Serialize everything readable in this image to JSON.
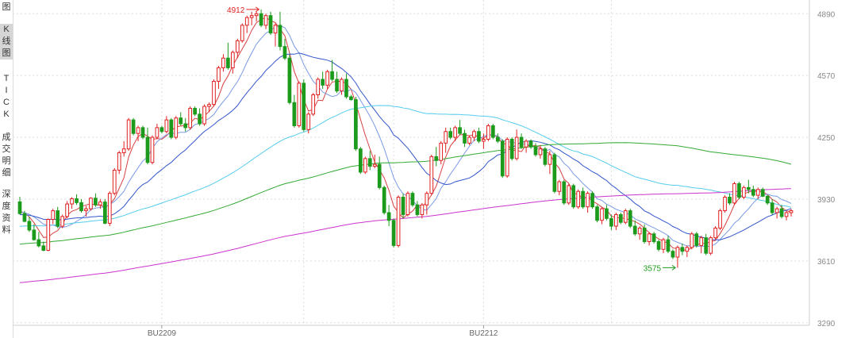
{
  "side_tabs": [
    {
      "label": "图",
      "partial": true
    },
    {
      "label": "K线图",
      "active": true
    },
    {
      "label": "TICK"
    },
    {
      "label": "成交明细"
    },
    {
      "label": "深度资料"
    }
  ],
  "chart_data": {
    "type": "candlestick",
    "price_axis": {
      "ticks": [
        4890,
        4570,
        4250,
        3930,
        3610,
        3290
      ],
      "ylim": [
        3285,
        4928
      ]
    },
    "x_labels": [
      {
        "label": "BU2209",
        "bar": 30
      },
      {
        "label": "BU2212",
        "bar": 98
      }
    ],
    "annotations": [
      {
        "text": "4912",
        "bar": 51,
        "price": 4912,
        "side": "left",
        "color": "#e02020"
      },
      {
        "text": "3575",
        "bar": 139,
        "price": 3575,
        "side": "left",
        "color": "#1c9a1c"
      }
    ],
    "colors": {
      "up": "#e02020",
      "down": "#1c9a1c",
      "grid": "#dddddd",
      "axis_text": "#888888"
    },
    "ma_lines": [
      {
        "period": 5,
        "color": "#d84040"
      },
      {
        "period": 10,
        "color": "#7a9ae6"
      },
      {
        "period": 20,
        "color": "#3355cc"
      },
      {
        "period": 60,
        "color": "#55ccee"
      },
      {
        "period": 120,
        "color": "#33aa33"
      },
      {
        "period": 250,
        "color": "#cc33cc"
      }
    ],
    "candles": [
      [
        3916,
        3942,
        3850,
        3855
      ],
      [
        3855,
        3870,
        3810,
        3815
      ],
      [
        3815,
        3840,
        3760,
        3770
      ],
      [
        3770,
        3800,
        3715,
        3720
      ],
      [
        3720,
        3760,
        3680,
        3688
      ],
      [
        3688,
        3710,
        3660,
        3665
      ],
      [
        3665,
        3830,
        3660,
        3825
      ],
      [
        3825,
        3880,
        3800,
        3870
      ],
      [
        3870,
        3890,
        3780,
        3790
      ],
      [
        3790,
        3850,
        3780,
        3840
      ],
      [
        3840,
        3920,
        3830,
        3905
      ],
      [
        3905,
        3940,
        3880,
        3932
      ],
      [
        3932,
        3955,
        3900,
        3912
      ],
      [
        3912,
        3930,
        3860,
        3870
      ],
      [
        3870,
        3895,
        3840,
        3880
      ],
      [
        3880,
        3940,
        3870,
        3935
      ],
      [
        3935,
        3960,
        3890,
        3900
      ],
      [
        3900,
        3930,
        3880,
        3915
      ],
      [
        3915,
        3930,
        3800,
        3805
      ],
      [
        3805,
        3970,
        3790,
        3960
      ],
      [
        3960,
        4090,
        3950,
        4080
      ],
      [
        4080,
        4180,
        4060,
        4170
      ],
      [
        4170,
        4230,
        4150,
        4190
      ],
      [
        4190,
        4350,
        4180,
        4340
      ],
      [
        4340,
        4350,
        4260,
        4270
      ],
      [
        4270,
        4310,
        4230,
        4300
      ],
      [
        4300,
        4310,
        4240,
        4250
      ],
      [
        4250,
        4300,
        4110,
        4120
      ],
      [
        4120,
        4260,
        4110,
        4250
      ],
      [
        4250,
        4320,
        4240,
        4300
      ],
      [
        4300,
        4310,
        4270,
        4280
      ],
      [
        4280,
        4360,
        4270,
        4340
      ],
      [
        4340,
        4350,
        4240,
        4250
      ],
      [
        4250,
        4360,
        4240,
        4350
      ],
      [
        4350,
        4380,
        4310,
        4320
      ],
      [
        4320,
        4350,
        4280,
        4300
      ],
      [
        4300,
        4410,
        4290,
        4400
      ],
      [
        4400,
        4410,
        4360,
        4370
      ],
      [
        4370,
        4400,
        4310,
        4320
      ],
      [
        4320,
        4420,
        4310,
        4410
      ],
      [
        4410,
        4430,
        4380,
        4420
      ],
      [
        4420,
        4550,
        4410,
        4540
      ],
      [
        4540,
        4620,
        4500,
        4610
      ],
      [
        4610,
        4680,
        4590,
        4660
      ],
      [
        4660,
        4740,
        4600,
        4610
      ],
      [
        4610,
        4700,
        4580,
        4690
      ],
      [
        4690,
        4760,
        4660,
        4750
      ],
      [
        4750,
        4840,
        4740,
        4830
      ],
      [
        4830,
        4880,
        4790,
        4870
      ],
      [
        4870,
        4900,
        4830,
        4880
      ],
      [
        4880,
        4900,
        4850,
        4890
      ],
      [
        4890,
        4912,
        4820,
        4830
      ],
      [
        4830,
        4890,
        4810,
        4880
      ],
      [
        4880,
        4900,
        4780,
        4790
      ],
      [
        4790,
        4840,
        4720,
        4830
      ],
      [
        4830,
        4900,
        4700,
        4720
      ],
      [
        4720,
        4760,
        4650,
        4660
      ],
      [
        4660,
        4680,
        4420,
        4430
      ],
      [
        4430,
        4470,
        4300,
        4310
      ],
      [
        4310,
        4540,
        4300,
        4530
      ],
      [
        4530,
        4550,
        4280,
        4290
      ],
      [
        4290,
        4380,
        4270,
        4370
      ],
      [
        4370,
        4480,
        4360,
        4470
      ],
      [
        4470,
        4560,
        4450,
        4550
      ],
      [
        4550,
        4590,
        4500,
        4520
      ],
      [
        4520,
        4600,
        4500,
        4590
      ],
      [
        4590,
        4650,
        4540,
        4550
      ],
      [
        4550,
        4590,
        4480,
        4490
      ],
      [
        4490,
        4560,
        4470,
        4550
      ],
      [
        4550,
        4580,
        4450,
        4460
      ],
      [
        4460,
        4470,
        4440,
        4445
      ],
      [
        4445,
        4460,
        4180,
        4190
      ],
      [
        4190,
        4200,
        4060,
        4070
      ],
      [
        4070,
        4150,
        4060,
        4140
      ],
      [
        4140,
        4180,
        4080,
        4100
      ],
      [
        4100,
        4160,
        4090,
        4110
      ],
      [
        4110,
        4150,
        3980,
        3990
      ],
      [
        3990,
        4000,
        3850,
        3860
      ],
      [
        3860,
        3900,
        3790,
        3820
      ],
      [
        3820,
        3830,
        3680,
        3690
      ],
      [
        3690,
        3950,
        3680,
        3940
      ],
      [
        3940,
        3960,
        3830,
        3850
      ],
      [
        3850,
        3970,
        3840,
        3960
      ],
      [
        3960,
        3970,
        3890,
        3900
      ],
      [
        3900,
        3920,
        3840,
        3850
      ],
      [
        3850,
        3910,
        3830,
        3900
      ],
      [
        3900,
        3970,
        3850,
        3960
      ],
      [
        3960,
        4160,
        3950,
        4150
      ],
      [
        4150,
        4200,
        4100,
        4130
      ],
      [
        4130,
        4230,
        4110,
        4220
      ],
      [
        4220,
        4300,
        4170,
        4280
      ],
      [
        4280,
        4300,
        4240,
        4250
      ],
      [
        4250,
        4310,
        4230,
        4300
      ],
      [
        4300,
        4340,
        4260,
        4270
      ],
      [
        4270,
        4290,
        4200,
        4220
      ],
      [
        4220,
        4260,
        4210,
        4250
      ],
      [
        4250,
        4290,
        4230,
        4280
      ],
      [
        4280,
        4300,
        4220,
        4230
      ],
      [
        4230,
        4270,
        4190,
        4240
      ],
      [
        4240,
        4320,
        4230,
        4310
      ],
      [
        4310,
        4320,
        4240,
        4250
      ],
      [
        4250,
        4270,
        4220,
        4230
      ],
      [
        4230,
        4240,
        4040,
        4050
      ],
      [
        4050,
        4250,
        4040,
        4240
      ],
      [
        4240,
        4250,
        4130,
        4140
      ],
      [
        4140,
        4290,
        4130,
        4250
      ],
      [
        4250,
        4270,
        4190,
        4200
      ],
      [
        4200,
        4240,
        4170,
        4230
      ],
      [
        4230,
        4240,
        4190,
        4200
      ],
      [
        4200,
        4220,
        4150,
        4160
      ],
      [
        4160,
        4210,
        4140,
        4190
      ],
      [
        4190,
        4200,
        4100,
        4110
      ],
      [
        4110,
        4180,
        4060,
        4160
      ],
      [
        4160,
        4170,
        3960,
        3970
      ],
      [
        3970,
        4030,
        3950,
        4020
      ],
      [
        4020,
        4030,
        3900,
        3910
      ],
      [
        3910,
        4010,
        3900,
        4000
      ],
      [
        4000,
        4010,
        3880,
        3890
      ],
      [
        3890,
        3980,
        3880,
        3970
      ],
      [
        3970,
        3990,
        3880,
        3890
      ],
      [
        3890,
        3970,
        3860,
        3960
      ],
      [
        3960,
        3970,
        3880,
        3890
      ],
      [
        3890,
        3900,
        3810,
        3820
      ],
      [
        3820,
        3890,
        3800,
        3880
      ],
      [
        3880,
        3900,
        3820,
        3830
      ],
      [
        3830,
        3850,
        3770,
        3790
      ],
      [
        3790,
        3860,
        3770,
        3850
      ],
      [
        3850,
        3860,
        3800,
        3810
      ],
      [
        3810,
        3880,
        3800,
        3870
      ],
      [
        3870,
        3880,
        3780,
        3790
      ],
      [
        3790,
        3820,
        3740,
        3750
      ],
      [
        3750,
        3790,
        3720,
        3780
      ],
      [
        3780,
        3800,
        3700,
        3710
      ],
      [
        3710,
        3760,
        3690,
        3750
      ],
      [
        3750,
        3760,
        3700,
        3710
      ],
      [
        3710,
        3720,
        3660,
        3670
      ],
      [
        3670,
        3730,
        3650,
        3720
      ],
      [
        3720,
        3740,
        3650,
        3660
      ],
      [
        3660,
        3670,
        3620,
        3630
      ],
      [
        3630,
        3690,
        3575,
        3680
      ],
      [
        3680,
        3700,
        3640,
        3660
      ],
      [
        3660,
        3690,
        3630,
        3680
      ],
      [
        3680,
        3760,
        3670,
        3750
      ],
      [
        3750,
        3760,
        3680,
        3690
      ],
      [
        3690,
        3740,
        3650,
        3730
      ],
      [
        3730,
        3750,
        3640,
        3650
      ],
      [
        3650,
        3740,
        3640,
        3730
      ],
      [
        3730,
        3790,
        3720,
        3780
      ],
      [
        3780,
        3880,
        3770,
        3870
      ],
      [
        3870,
        3950,
        3860,
        3940
      ],
      [
        3940,
        3960,
        3900,
        3910
      ],
      [
        3910,
        4020,
        3900,
        4010
      ],
      [
        4010,
        4020,
        3930,
        3940
      ],
      [
        3940,
        4000,
        3930,
        3990
      ],
      [
        3990,
        4030,
        3960,
        3980
      ],
      [
        3980,
        4000,
        3940,
        3950
      ],
      [
        3950,
        3990,
        3930,
        3980
      ],
      [
        3980,
        3990,
        3940,
        3945
      ],
      [
        3945,
        3950,
        3900,
        3910
      ],
      [
        3910,
        3930,
        3850,
        3860
      ],
      [
        3860,
        3890,
        3830,
        3880
      ],
      [
        3880,
        3900,
        3830,
        3840
      ],
      [
        3840,
        3870,
        3820,
        3860
      ],
      [
        3860,
        3880,
        3840,
        3870
      ]
    ]
  }
}
